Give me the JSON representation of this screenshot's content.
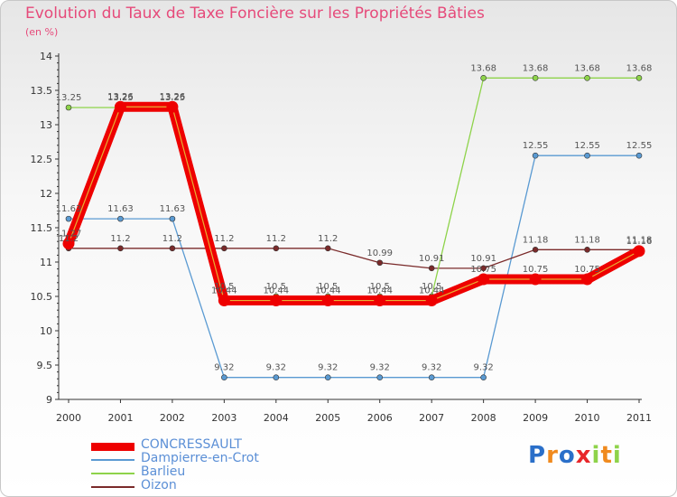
{
  "chart_data": {
    "type": "line",
    "title": "Evolution du Taux de Taxe Foncière sur les Propriétés Bâties",
    "subtitle": "(en %)",
    "xlabel": "",
    "ylabel": "",
    "ylim": [
      9,
      14
    ],
    "yticks": [
      "9",
      "9.5",
      "10",
      "10.5",
      "11",
      "11.5",
      "12",
      "12.5",
      "13",
      "13.5",
      "14"
    ],
    "categories": [
      "2000",
      "2001",
      "2002",
      "2003",
      "2004",
      "2005",
      "2006",
      "2007",
      "2008",
      "2009",
      "2010",
      "2011"
    ],
    "legend_position": "bottom-left",
    "grid": false,
    "series": [
      {
        "name": "Dampierre-en-Crot",
        "color": "#5a9ad2",
        "values": [
          11.63,
          11.63,
          11.63,
          9.32,
          9.32,
          9.32,
          9.32,
          9.32,
          9.32,
          12.55,
          12.55,
          12.55
        ],
        "labels": [
          "11.63",
          "11.63",
          "11.63",
          "9.32",
          "9.32",
          "9.32",
          "9.32",
          "9.32",
          "9.32",
          "12.55",
          "12.55",
          "12.55"
        ]
      },
      {
        "name": "Oizon",
        "color": "#7a2a2a",
        "values": [
          11.2,
          11.2,
          11.2,
          11.2,
          11.2,
          11.2,
          10.99,
          10.91,
          10.91,
          11.18,
          11.18,
          11.18
        ],
        "labels": [
          "11.2",
          "11.2",
          "11.2",
          "11.2",
          "11.2",
          "11.2",
          "10.99",
          "10.91",
          "10.91",
          "11.18",
          "11.18",
          "11.18"
        ]
      },
      {
        "name": "Barlieu",
        "color": "#8ed34a",
        "values": [
          13.25,
          13.25,
          13.25,
          10.5,
          10.5,
          10.5,
          10.5,
          10.5,
          13.68,
          13.68,
          13.68,
          13.68
        ],
        "labels": [
          "13.25",
          "13.25",
          "13.25",
          "10.5",
          "10.5",
          "10.5",
          "10.5",
          "10.5",
          "13.68",
          "13.68",
          "13.68",
          "13.68"
        ]
      },
      {
        "name": "CONCRESSAULT",
        "color": "#ee0000",
        "values": [
          11.27,
          13.26,
          13.26,
          10.44,
          10.44,
          10.44,
          10.44,
          10.44,
          10.75,
          10.75,
          10.75,
          11.16
        ],
        "labels": [
          "11.27",
          "13.26",
          "13.26",
          "10.44",
          "10.44",
          "10.44",
          "10.44",
          "10.44",
          "10.75",
          "10.75",
          "10.75",
          "11.16"
        ]
      }
    ]
  },
  "legend": {
    "items": [
      {
        "label": "CONCRESSAULT",
        "color": "#ee0000"
      },
      {
        "label": "Dampierre-en-Crot",
        "color": "#5a9ad2"
      },
      {
        "label": "Barlieu",
        "color": "#8ed34a"
      },
      {
        "label": "Oizon",
        "color": "#7a2a2a"
      }
    ]
  },
  "logo": {
    "text": "Proxiti",
    "letters": [
      {
        "ch": "P",
        "color": "#2a6fc9"
      },
      {
        "ch": "r",
        "color": "#f08a1e"
      },
      {
        "ch": "o",
        "color": "#2a6fc9"
      },
      {
        "ch": "x",
        "color": "#e8262a"
      },
      {
        "ch": "i",
        "color": "#8ed34a"
      },
      {
        "ch": "t",
        "color": "#f08a1e"
      },
      {
        "ch": "i",
        "color": "#8ed34a"
      }
    ]
  }
}
